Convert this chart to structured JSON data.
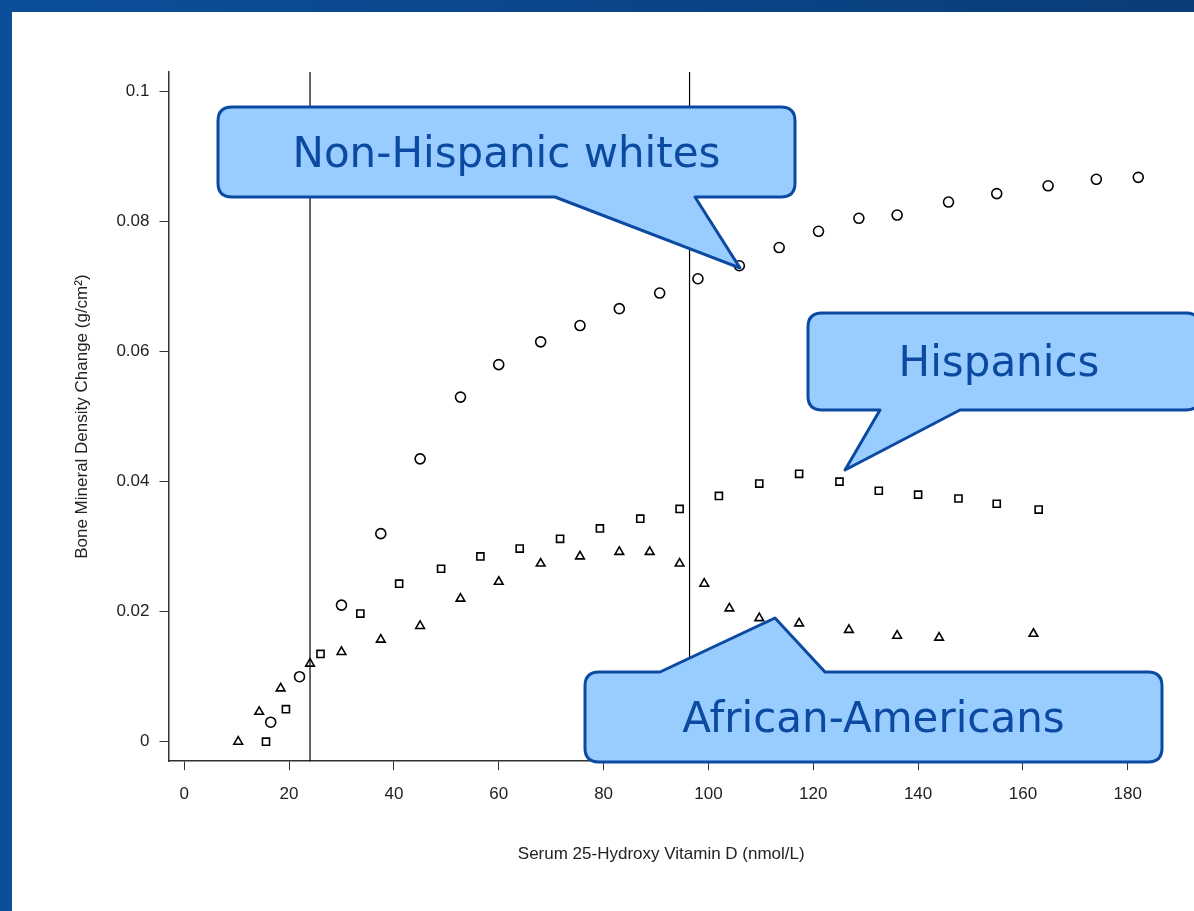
{
  "chart_data": {
    "type": "scatter",
    "xlabel": "Serum 25-Hydroxy Vitamin D (nmol/L)",
    "ylabel": "Bone Mineral Density Change (g/cm²)",
    "xlim": [
      -3,
      185
    ],
    "xticks": [
      0,
      20,
      40,
      60,
      80,
      100,
      120,
      140,
      160,
      180
    ],
    "ylim": [
      -0.003,
      0.103
    ],
    "yticks": [
      0,
      0.02,
      0.04,
      0.06,
      0.08,
      0.1
    ],
    "legend": false,
    "series": [
      {
        "color": "#000000",
        "marker": "circle",
        "x": [
          16.5,
          22,
          30,
          37.5,
          45,
          52.7,
          60,
          68,
          75.5,
          83,
          90.7,
          98,
          105.9,
          113.5,
          121,
          128.7,
          136,
          145.8,
          155,
          164.8,
          174,
          182
        ],
        "values": [
          0.003,
          0.01,
          0.021,
          0.032,
          0.0435,
          0.053,
          0.058,
          0.0615,
          0.064,
          0.0666,
          0.069,
          0.0712,
          0.0732,
          0.076,
          0.0785,
          0.0805,
          0.081,
          0.083,
          0.0843,
          0.0855,
          0.0865,
          0.0868
        ]
      },
      {
        "color": "#000000",
        "marker": "square",
        "x": [
          15.6,
          19.4,
          26,
          33.6,
          41,
          49,
          56.5,
          64,
          71.7,
          79.3,
          87,
          94.5,
          102,
          109.7,
          117.3,
          125,
          132.5,
          140,
          147.7,
          155,
          163
        ],
        "values": [
          0,
          0.005,
          0.0135,
          0.0197,
          0.0243,
          0.0266,
          0.0285,
          0.0297,
          0.0312,
          0.0328,
          0.0343,
          0.0358,
          0.0378,
          0.0397,
          0.0412,
          0.04,
          0.0386,
          0.038,
          0.0374,
          0.0366,
          0.0357
        ]
      },
      {
        "color": "#000000",
        "marker": "triangle",
        "x": [
          10.3,
          14.3,
          18.4,
          24,
          30,
          37.5,
          45,
          52.7,
          60,
          68,
          75.5,
          83,
          88.8,
          94.5,
          99.2,
          104,
          109.7,
          117.3,
          126.8,
          136,
          144,
          162
        ],
        "values": [
          0,
          0.0046,
          0.0082,
          0.012,
          0.0138,
          0.0157,
          0.0178,
          0.022,
          0.0246,
          0.0274,
          0.0285,
          0.0292,
          0.0292,
          0.0274,
          0.0243,
          0.0205,
          0.019,
          0.0182,
          0.0172,
          0.0163,
          0.016,
          0.0166
        ]
      }
    ],
    "ref_lines": [
      {
        "axis": "x",
        "value": 24,
        "color": "#000000"
      },
      {
        "axis": "x",
        "value": 96.4,
        "color": "#000000"
      }
    ],
    "annotations": [
      "Non-Hispanic whites",
      "Hispanics",
      "African-Americans"
    ]
  }
}
